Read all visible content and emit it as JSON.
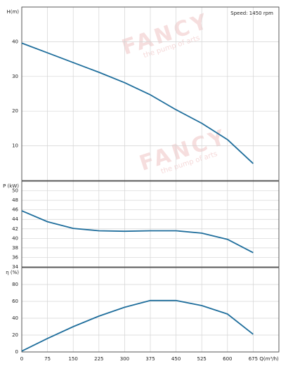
{
  "chart_data": [
    {
      "type": "line",
      "ylabel": "H(m)",
      "annotation": "Speed: 1450 rpm",
      "watermark": "FANCY",
      "watermark_sub": "the pump of arts",
      "x": [
        0,
        75,
        150,
        225,
        300,
        375,
        450,
        525,
        600,
        675
      ],
      "series": [
        {
          "color": "#1f6e9c",
          "values": [
            39.6,
            36.8,
            34,
            31.2,
            28.2,
            24.7,
            20.4,
            16.5,
            11.8,
            4.9
          ]
        }
      ],
      "xlim": [
        0,
        750
      ],
      "xticks": [
        0,
        75,
        150,
        225,
        300,
        375,
        450,
        525,
        600,
        675
      ],
      "ylim": [
        0,
        50
      ],
      "yticks": [
        10,
        20,
        30,
        40
      ],
      "grid": true
    },
    {
      "type": "line",
      "ylabel": "P (kW)",
      "x": [
        0,
        75,
        150,
        225,
        300,
        375,
        450,
        525,
        600,
        675
      ],
      "series": [
        {
          "color": "#1f6e9c",
          "values": [
            45.8,
            43.5,
            42.1,
            41.6,
            41.5,
            41.6,
            41.6,
            41.1,
            39.8,
            37
          ]
        }
      ],
      "xlim": [
        0,
        750
      ],
      "xticks": [
        0,
        75,
        150,
        225,
        300,
        375,
        450,
        525,
        600,
        675
      ],
      "ylim": [
        34,
        52
      ],
      "yticks": [
        34,
        36,
        38,
        40,
        42,
        44,
        46,
        48,
        50
      ],
      "grid": true
    },
    {
      "type": "line",
      "ylabel": "η (%)",
      "xlabel": "Q(m³/h)",
      "x": [
        0,
        75,
        150,
        225,
        300,
        375,
        450,
        525,
        600,
        675
      ],
      "series": [
        {
          "color": "#1f6e9c",
          "values": [
            1,
            16,
            30,
            42.5,
            53,
            61,
            61,
            55,
            45,
            21
          ]
        }
      ],
      "xlim": [
        0,
        750
      ],
      "xticks": [
        0,
        75,
        150,
        225,
        300,
        375,
        450,
        525,
        600,
        675
      ],
      "ylim": [
        0,
        100
      ],
      "yticks": [
        0,
        20,
        40,
        60,
        80
      ],
      "grid": true,
      "xticklabels": true
    }
  ]
}
